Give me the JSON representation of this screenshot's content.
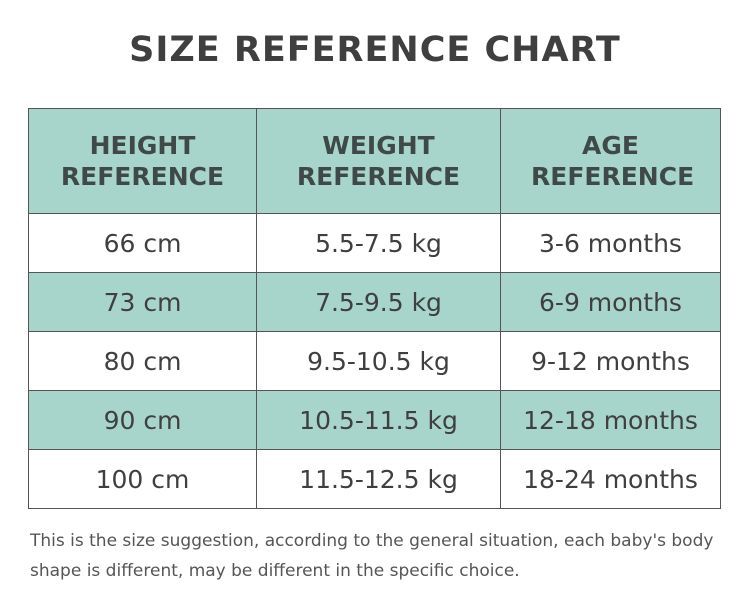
{
  "title": "SIZE REFERENCE CHART",
  "table": {
    "header": [
      "HEIGHT REFERENCE",
      "WEIGHT REFERENCE",
      "AGE REFERENCE"
    ],
    "rows": [
      [
        "66 cm",
        "5.5-7.5 kg",
        "3-6 months"
      ],
      [
        "73 cm",
        "7.5-9.5 kg",
        "6-9 months"
      ],
      [
        "80 cm",
        "9.5-10.5 kg",
        "9-12 months"
      ],
      [
        "90 cm",
        "10.5-11.5 kg",
        "12-18 months"
      ],
      [
        "100 cm",
        "11.5-12.5 kg",
        "18-24 months"
      ]
    ]
  },
  "note": "This is the size suggestion, according to the general situation, each baby's body shape is different, may be different in the specific choice."
}
